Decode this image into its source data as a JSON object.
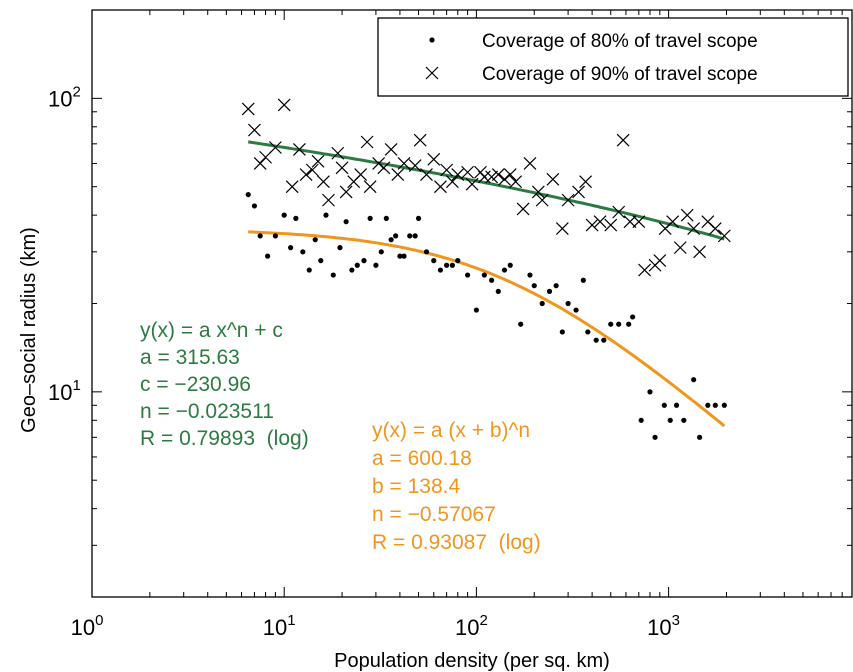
{
  "chart_data": {
    "type": "scatter",
    "x_scale": "log",
    "y_scale": "log",
    "xlim": [
      1,
      9000
    ],
    "ylim": [
      2,
      200
    ],
    "xlabel": "Population density (per sq. km)",
    "ylabel": "Geo–social radius (km)",
    "x_ticks": [
      {
        "base": "10",
        "exp": "0",
        "value": 1
      },
      {
        "base": "10",
        "exp": "1",
        "value": 10
      },
      {
        "base": "10",
        "exp": "2",
        "value": 100
      },
      {
        "base": "10",
        "exp": "3",
        "value": 1000
      }
    ],
    "y_ticks": [
      {
        "base": "10",
        "exp": "1",
        "value": 10
      },
      {
        "base": "10",
        "exp": "2",
        "value": 100
      }
    ],
    "legend": {
      "position": "top-right",
      "entries": [
        {
          "marker": "dot",
          "label": "Coverage of 80% of travel scope"
        },
        {
          "marker": "x",
          "label": "Coverage of 90% of travel scope"
        }
      ]
    },
    "series": [
      {
        "name": "Coverage of 80% of travel scope",
        "marker": "dot",
        "color": "#000000",
        "points": [
          [
            6.5,
            47
          ],
          [
            7.0,
            43
          ],
          [
            7.5,
            34
          ],
          [
            8.2,
            29
          ],
          [
            9.0,
            34
          ],
          [
            10.0,
            40
          ],
          [
            10.8,
            31
          ],
          [
            11.5,
            39
          ],
          [
            12.5,
            30
          ],
          [
            13.5,
            26
          ],
          [
            14.5,
            33
          ],
          [
            15.5,
            28
          ],
          [
            16.5,
            40
          ],
          [
            18,
            25
          ],
          [
            19.5,
            31
          ],
          [
            21,
            38
          ],
          [
            22.5,
            26
          ],
          [
            24,
            27
          ],
          [
            26,
            28
          ],
          [
            28,
            39
          ],
          [
            30,
            27
          ],
          [
            32,
            30
          ],
          [
            34,
            39
          ],
          [
            36,
            33
          ],
          [
            38,
            34
          ],
          [
            40,
            29
          ],
          [
            42,
            29
          ],
          [
            45,
            34
          ],
          [
            48,
            34
          ],
          [
            50,
            39
          ],
          [
            55,
            30
          ],
          [
            60,
            28
          ],
          [
            65,
            26
          ],
          [
            70,
            27
          ],
          [
            75,
            27
          ],
          [
            80,
            28
          ],
          [
            90,
            25
          ],
          [
            100,
            19
          ],
          [
            110,
            25
          ],
          [
            120,
            24
          ],
          [
            130,
            22
          ],
          [
            140,
            26
          ],
          [
            150,
            27
          ],
          [
            170,
            17
          ],
          [
            190,
            25
          ],
          [
            200,
            23
          ],
          [
            220,
            20
          ],
          [
            240,
            22
          ],
          [
            260,
            23
          ],
          [
            280,
            16
          ],
          [
            300,
            20
          ],
          [
            330,
            19
          ],
          [
            360,
            24
          ],
          [
            380,
            16
          ],
          [
            420,
            15
          ],
          [
            460,
            15
          ],
          [
            500,
            17
          ],
          [
            550,
            17
          ],
          [
            620,
            17
          ],
          [
            650,
            18
          ],
          [
            720,
            8
          ],
          [
            800,
            10
          ],
          [
            850,
            7
          ],
          [
            950,
            9
          ],
          [
            1020,
            8
          ],
          [
            1100,
            9
          ],
          [
            1200,
            8
          ],
          [
            1350,
            11
          ],
          [
            1450,
            7
          ],
          [
            1600,
            9
          ],
          [
            1750,
            9
          ],
          [
            1950,
            9
          ]
        ]
      },
      {
        "name": "Coverage of 90% of travel scope",
        "marker": "x",
        "color": "#000000",
        "points": [
          [
            6.5,
            92
          ],
          [
            7.0,
            78
          ],
          [
            7.5,
            60
          ],
          [
            8.0,
            63
          ],
          [
            9.0,
            68
          ],
          [
            10.0,
            95
          ],
          [
            11.0,
            50
          ],
          [
            12.0,
            67
          ],
          [
            13.0,
            55
          ],
          [
            14.0,
            57
          ],
          [
            15.0,
            61
          ],
          [
            16.0,
            52
          ],
          [
            17.0,
            45
          ],
          [
            19.0,
            65
          ],
          [
            20.0,
            58
          ],
          [
            21.0,
            48
          ],
          [
            23.0,
            52
          ],
          [
            25.0,
            55
          ],
          [
            27.0,
            71
          ],
          [
            28.0,
            50
          ],
          [
            31.0,
            60
          ],
          [
            33.0,
            58
          ],
          [
            36.0,
            67
          ],
          [
            39.0,
            55
          ],
          [
            42.0,
            60
          ],
          [
            48.0,
            59
          ],
          [
            51.0,
            72
          ],
          [
            55.0,
            55
          ],
          [
            60.0,
            62
          ],
          [
            65.0,
            50
          ],
          [
            70.0,
            57
          ],
          [
            75.0,
            52
          ],
          [
            80.0,
            55
          ],
          [
            90.0,
            56
          ],
          [
            95.0,
            51
          ],
          [
            105.0,
            56
          ],
          [
            110.0,
            54
          ],
          [
            120.0,
            54
          ],
          [
            130.0,
            55
          ],
          [
            140.0,
            53
          ],
          [
            150.0,
            55
          ],
          [
            160.0,
            52
          ],
          [
            175.0,
            42
          ],
          [
            190.0,
            60
          ],
          [
            210.0,
            48
          ],
          [
            220.0,
            45
          ],
          [
            250.0,
            53
          ],
          [
            280.0,
            36
          ],
          [
            300.0,
            45
          ],
          [
            340.0,
            48
          ],
          [
            370.0,
            52
          ],
          [
            400.0,
            37
          ],
          [
            440.0,
            38
          ],
          [
            500.0,
            37
          ],
          [
            550.0,
            41
          ],
          [
            580.0,
            72
          ],
          [
            630.0,
            38
          ],
          [
            700.0,
            38
          ],
          [
            750.0,
            26
          ],
          [
            850.0,
            27
          ],
          [
            900.0,
            28
          ],
          [
            960.0,
            36
          ],
          [
            1050.0,
            38
          ],
          [
            1150.0,
            31
          ],
          [
            1250.0,
            40
          ],
          [
            1350.0,
            36
          ],
          [
            1450.0,
            30
          ],
          [
            1600.0,
            38
          ],
          [
            1750.0,
            36
          ],
          [
            1950.0,
            34
          ]
        ]
      }
    ],
    "fits": [
      {
        "formula": "power",
        "color": "#2e7a43",
        "params": {
          "a": 315.63,
          "c": -230.96,
          "n": -0.023511
        },
        "x_range": [
          6.5,
          1950
        ],
        "label_lines": [
          "y(x) = a x^n + c",
          "a = 315.63",
          "c = −230.96",
          "n = −0.023511",
          "R = 0.79893  (log)"
        ]
      },
      {
        "formula": "shifted_power",
        "color": "#f0961e",
        "params": {
          "a": 600.18,
          "b": 138.4,
          "n": -0.57067
        },
        "x_range": [
          6.5,
          1950
        ],
        "label_lines": [
          "y(x) = a (x + b)^n",
          "a = 600.18",
          "b = 138.4",
          "n = −0.57067",
          "R = 0.93087  (log)"
        ]
      }
    ]
  }
}
